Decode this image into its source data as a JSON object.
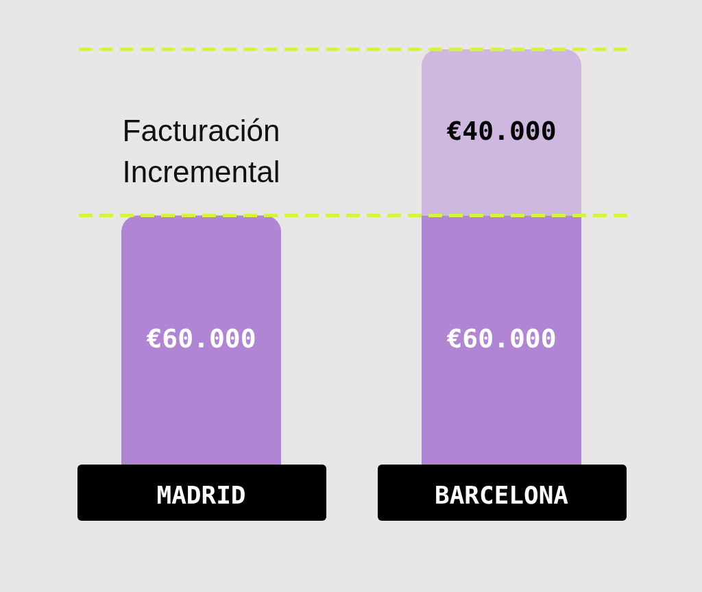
{
  "chart_data": {
    "type": "bar",
    "stacked": true,
    "categories": [
      "MADRID",
      "BARCELONA"
    ],
    "series": [
      {
        "color": "#b086d4",
        "values": [
          60000,
          60000
        ],
        "value_labels": [
          "€60.000",
          "€60.000"
        ]
      },
      {
        "color": "#cfb8e0",
        "values": [
          null,
          40000
        ],
        "value_labels": [
          null,
          "€40.000"
        ]
      }
    ],
    "ylim": [
      0,
      100000
    ],
    "ref_lines": [
      {
        "axis": "y",
        "value": 60000,
        "color": "#d4f53c",
        "line_style": "dashed"
      },
      {
        "axis": "y",
        "value": 100000,
        "color": "#d4f53c",
        "line_style": "dashed"
      }
    ],
    "annotations": [
      "Facturación Incremental"
    ],
    "grid": false
  }
}
